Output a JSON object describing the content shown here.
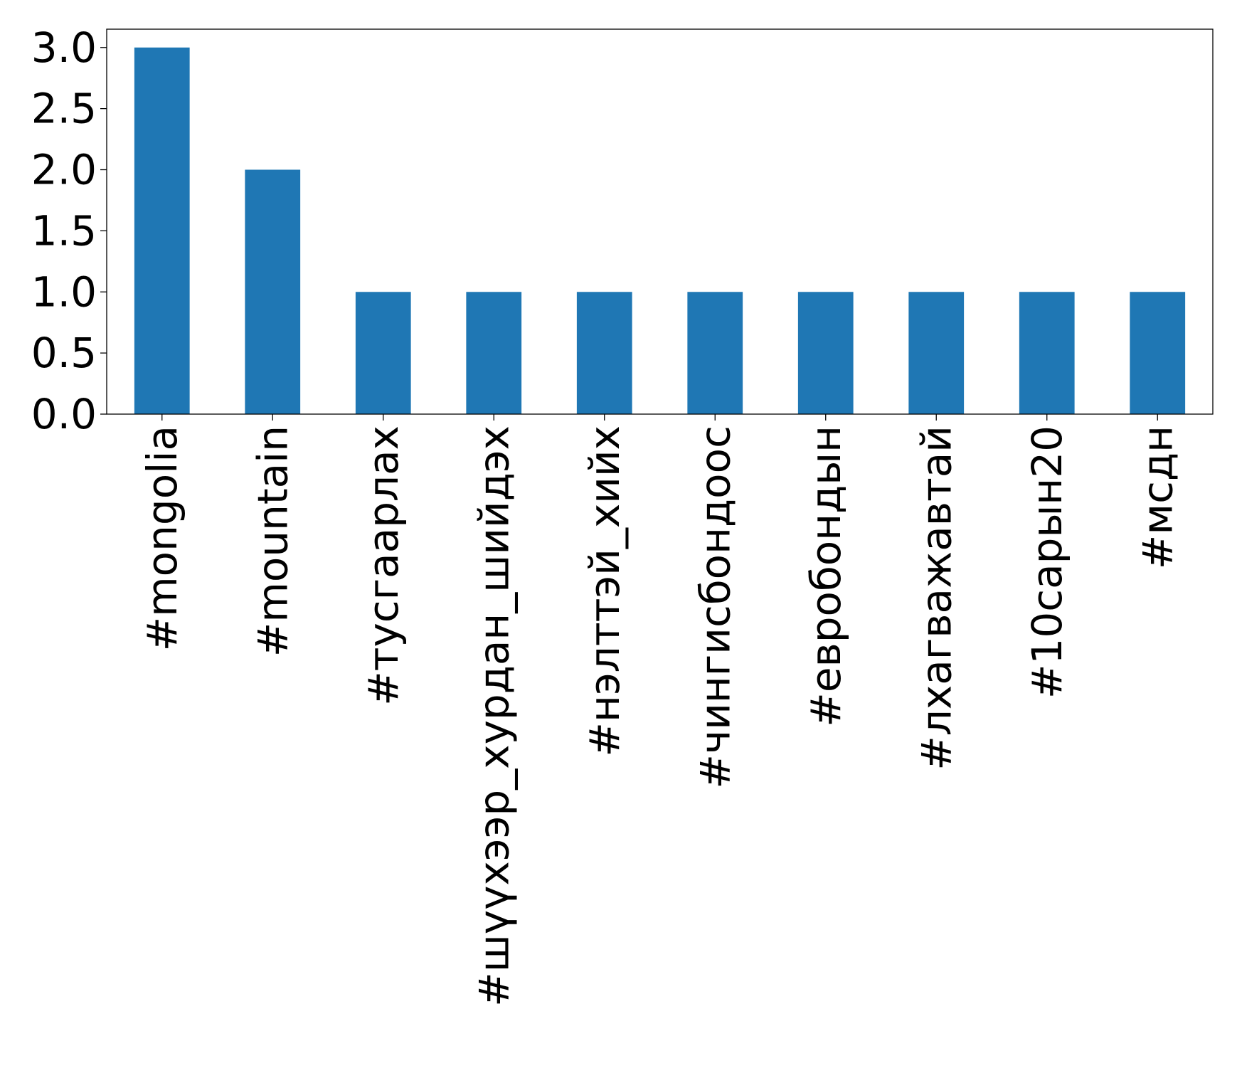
{
  "chart_data": {
    "type": "bar",
    "title": "",
    "xlabel": "",
    "ylabel": "",
    "categories": [
      "#mongolia",
      "#mountain",
      "#тусгаарлах",
      "#шүүхээр_хурдан_шийдэх",
      "#нэлттэй_хийх",
      "#чингисбондоос",
      "#евробондын",
      "#лхагважавтай",
      "#10сарын20",
      "#мсдн"
    ],
    "values": [
      3,
      2,
      1,
      1,
      1,
      1,
      1,
      1,
      1,
      1
    ],
    "ylim": [
      0,
      3.15
    ],
    "yticks": [
      0.0,
      0.5,
      1.0,
      1.5,
      2.0,
      2.5,
      3.0
    ],
    "ytick_labels": [
      "0.0",
      "0.5",
      "1.0",
      "1.5",
      "2.0",
      "2.5",
      "3.0"
    ],
    "grid": false,
    "legend": "none",
    "bar_color": "#1f77b4"
  }
}
